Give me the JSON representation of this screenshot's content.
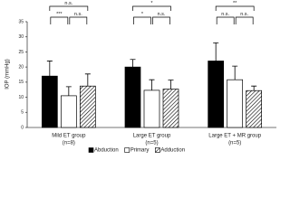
{
  "chart_data": {
    "type": "bar",
    "y_label": "IOP (mmHg)",
    "categories": [
      "Mild ET group",
      "Large ET group",
      "Large ET + MR group"
    ],
    "sample_sizes": [
      "(n=8)",
      "(n=5)",
      "(n=5)"
    ],
    "series": [
      {
        "name": "Abduction",
        "color": "#000000",
        "values": [
          17,
          20,
          22
        ],
        "errors": [
          5,
          2.5,
          6
        ]
      },
      {
        "name": "Primary",
        "color": "#ffffff",
        "values": [
          10.5,
          12.3,
          15.8
        ],
        "errors": [
          3,
          3.5,
          4.5
        ]
      },
      {
        "name": "Adduction",
        "color": "hatch",
        "values": [
          13.7,
          12.7,
          12.2
        ],
        "errors": [
          4,
          3,
          1.5
        ]
      }
    ],
    "significance": [
      {
        "outer": "n.s.",
        "left": "***",
        "right": "n.s."
      },
      {
        "outer": "*",
        "left": "*",
        "right": "n.s."
      },
      {
        "outer": "**",
        "left": "n.s.",
        "right": "n.s."
      }
    ],
    "ylim": [
      0,
      35
    ],
    "yticks": [
      0,
      5,
      10,
      15,
      20,
      25,
      30,
      35
    ]
  }
}
